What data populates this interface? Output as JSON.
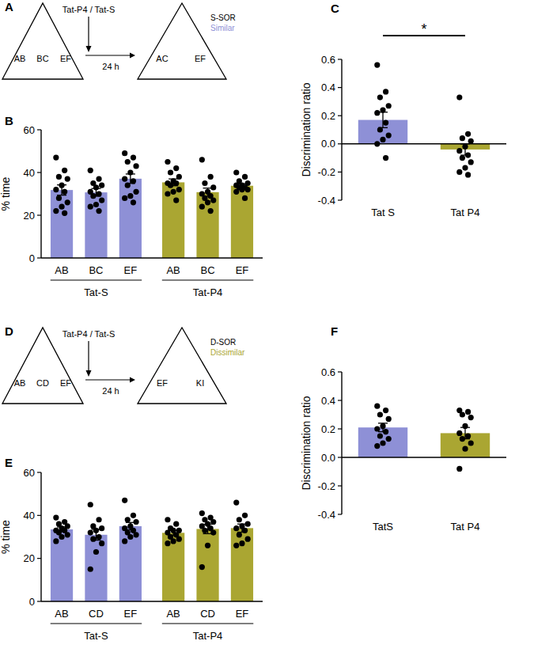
{
  "chart_data": [
    {
      "panel": "B",
      "type": "bar",
      "ylabel": "% time",
      "categories": [
        "AB",
        "BC",
        "EF"
      ],
      "ylim": [
        0,
        60
      ],
      "yticks": [
        0,
        20,
        40,
        60
      ],
      "series": [
        {
          "name": "Tat-S",
          "color": "#8e90d6",
          "values": [
            31.8,
            30.7,
            37.1
          ],
          "errors": [
            2.4,
            1.8,
            2.2
          ],
          "points": [
            [
              47,
              41,
              38,
              37,
              34,
              32,
              31,
              28,
              26,
              24,
              22,
              21
            ],
            [
              41,
              37,
              35,
              34,
              33,
              31,
              30,
              29,
              27,
              25,
              24,
              22
            ],
            [
              49,
              47,
              45,
              43,
              40,
              37,
              36,
              34,
              31,
              29,
              28,
              26
            ]
          ]
        },
        {
          "name": "Tat-P4",
          "color": "#aaa632",
          "values": [
            35.4,
            30.8,
            33.8
          ],
          "errors": [
            1.6,
            1.9,
            0.9
          ],
          "points": [
            [
              45,
              42,
              40,
              38,
              36,
              35,
              35,
              34,
              32,
              31,
              30,
              27
            ],
            [
              46,
              38,
              35,
              33,
              31,
              30,
              29,
              28,
              27,
              26,
              24,
              22
            ],
            [
              40,
              38,
              36,
              35,
              34,
              34,
              33,
              33,
              32,
              32,
              31,
              28
            ]
          ]
        }
      ]
    },
    {
      "panel": "C",
      "type": "bar",
      "ylabel": "Discrimination ratio",
      "categories": [
        "Tat S",
        "Tat P4"
      ],
      "ylim": [
        -0.4,
        0.6
      ],
      "yticks": [
        -0.4,
        -0.2,
        {
          "value": 0,
          "label": "0.0"
        },
        0.2,
        0.4,
        0.6
      ],
      "values": [
        0.17,
        -0.04
      ],
      "errors": [
        0.055,
        0.04
      ],
      "colors": [
        "#8e90d6",
        "#aaa632"
      ],
      "points": [
        [
          0.56,
          0.37,
          0.33,
          0.27,
          0.24,
          0.22,
          0.15,
          0.1,
          0.06,
          0.03,
          0.0,
          -0.1
        ],
        [
          0.33,
          0.07,
          0.04,
          0.02,
          -0.02,
          -0.05,
          -0.08,
          -0.1,
          -0.13,
          -0.17,
          -0.2,
          -0.22
        ]
      ],
      "annotations": [
        {
          "text": "*",
          "between": [
            "Tat S",
            "Tat P4"
          ]
        }
      ]
    },
    {
      "panel": "E",
      "type": "bar",
      "ylabel": "% time",
      "categories": [
        "AB",
        "CD",
        "EF"
      ],
      "ylim": [
        0,
        60
      ],
      "yticks": [
        0,
        20,
        40,
        60
      ],
      "series": [
        {
          "name": "Tat-S",
          "color": "#8e90d6",
          "values": [
            33.5,
            31,
            35
          ],
          "errors": [
            1.1,
            2.5,
            1.7
          ],
          "points": [
            [
              39,
              37,
              36,
              35,
              34,
              33,
              33,
              32,
              31,
              30,
              28
            ],
            [
              45,
              38,
              35,
              34,
              33,
              32,
              30,
              29,
              27,
              23,
              15
            ],
            [
              47,
              40,
              38,
              37,
              35,
              34,
              33,
              32,
              31,
              30,
              28
            ]
          ]
        },
        {
          "name": "Tat-P4",
          "color": "#aaa632",
          "values": [
            31.9,
            33.7,
            34.1
          ],
          "errors": [
            1.1,
            2.2,
            1.9
          ],
          "points": [
            [
              38,
              36,
              34,
              33,
              33,
              32,
              31,
              30,
              29,
              28,
              27
            ],
            [
              41,
              39,
              38,
              37,
              36,
              35,
              34,
              33,
              32,
              26,
              16
            ],
            [
              46,
              40,
              38,
              36,
              35,
              34,
              33,
              31,
              29,
              27,
              26
            ]
          ]
        }
      ]
    },
    {
      "panel": "F",
      "type": "bar",
      "ylabel": "Discrimination ratio",
      "categories": [
        "TatS",
        "Tat P4"
      ],
      "ylim": [
        -0.4,
        0.6
      ],
      "yticks": [
        -0.4,
        -0.2,
        {
          "value": 0,
          "label": "0.0"
        },
        0.2,
        0.4,
        0.6
      ],
      "values": [
        0.21,
        0.17
      ],
      "errors": [
        0.03,
        0.04
      ],
      "colors": [
        "#8e90d6",
        "#aaa632"
      ],
      "points": [
        [
          0.36,
          0.33,
          0.3,
          0.27,
          0.22,
          0.2,
          0.18,
          0.15,
          0.13,
          0.1,
          0.08
        ],
        [
          0.33,
          0.32,
          0.3,
          0.28,
          0.22,
          0.17,
          0.15,
          0.13,
          0.1,
          0.06,
          -0.08
        ]
      ]
    }
  ],
  "diagrams": [
    {
      "panel": "A",
      "before": [
        "AB",
        "BC",
        "EF"
      ],
      "after": [
        "AC",
        "EF"
      ],
      "treatment": "Tat-P4 / Tat-S",
      "delay": "24 h",
      "task": "S-SOR",
      "condition": "Similar",
      "color": "#8e90d6"
    },
    {
      "panel": "D",
      "before": [
        "AB",
        "CD",
        "EF"
      ],
      "after": [
        "EF",
        "KI"
      ],
      "treatment": "Tat-P4 / Tat-S",
      "delay": "24 h",
      "task": "D-SOR",
      "condition": "Dissimilar",
      "color": "#aaa632"
    }
  ]
}
